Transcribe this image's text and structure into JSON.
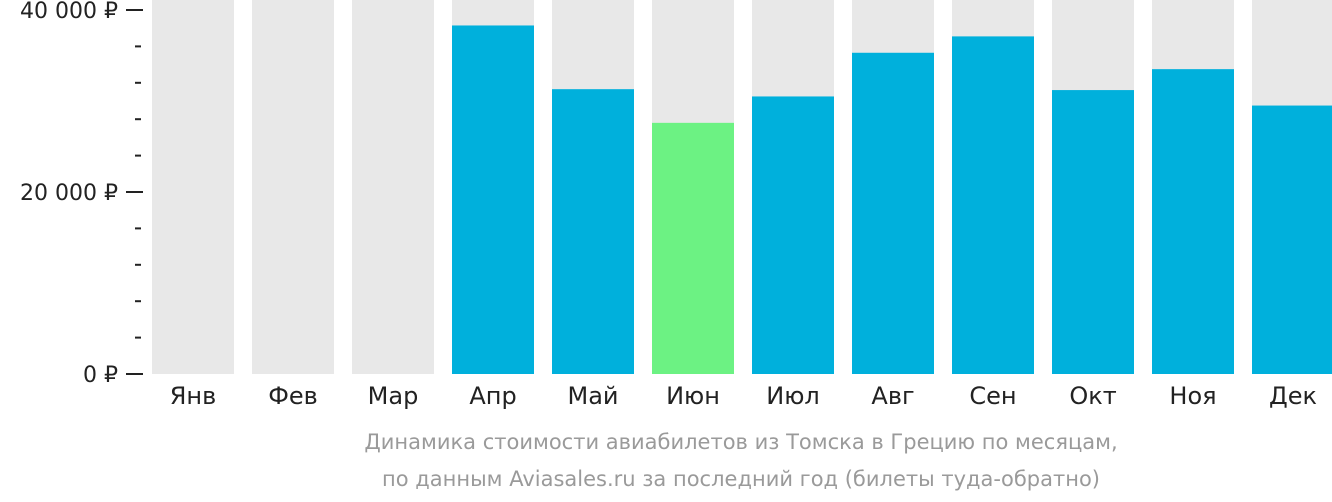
{
  "chart_data": {
    "type": "bar",
    "categories": [
      "Янв",
      "Фев",
      "Мар",
      "Апр",
      "Май",
      "Июн",
      "Июл",
      "Авг",
      "Сен",
      "Окт",
      "Ноя",
      "Дек"
    ],
    "values": [
      null,
      null,
      null,
      38300,
      31300,
      27600,
      30500,
      35300,
      37100,
      31200,
      33500,
      29500
    ],
    "highlight_index": 5,
    "ylim": [
      0,
      40000
    ],
    "yticks": [
      {
        "value": 0,
        "label": "0 ₽"
      },
      {
        "value": 20000,
        "label": "20 000 ₽"
      },
      {
        "value": 40000,
        "label": "40 000 ₽"
      }
    ],
    "minor_tick_step": 4000,
    "grid": false,
    "colors": {
      "bar": "#00b0dc",
      "highlight": "#6cf283",
      "track": "#e8e8e8",
      "axis": "#222222"
    },
    "caption": [
      "Динамика стоимости авиабилетов из Томска в Грецию по месяцам,",
      "по данным Aviasales.ru за последний год (билеты туда-обратно)"
    ]
  }
}
